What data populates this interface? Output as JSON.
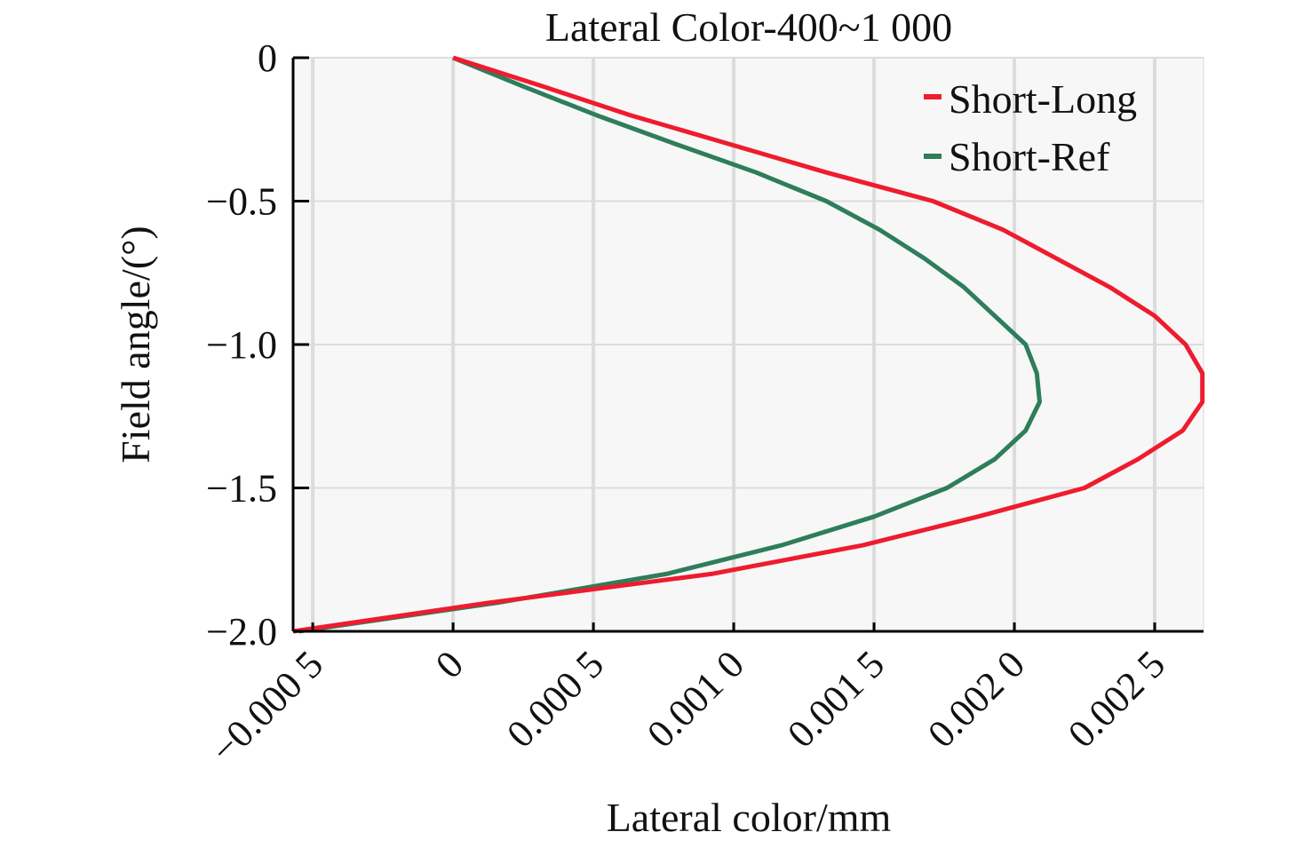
{
  "chart_data": {
    "type": "line",
    "title": "Lateral Color-400~1 000",
    "xlabel": "Lateral color/mm",
    "ylabel": "Field angle/(°)",
    "xlim": [
      -0.00057,
      0.002674
    ],
    "ylim": [
      -2.0,
      0
    ],
    "grid": true,
    "legend_position": "top-right",
    "x_ticks": [
      -0.0005,
      0,
      0.0005,
      0.001,
      0.0015,
      0.002,
      0.0025
    ],
    "x_tick_labels": [
      "−0.000 5",
      "0",
      "0.000 5",
      "0.001 0",
      "0.001 5",
      "0.002 0",
      "0.002 5"
    ],
    "y_ticks": [
      0,
      -0.5,
      -1.0,
      -1.5,
      -2.0
    ],
    "y_tick_labels": [
      "0",
      "−0.5",
      "−1.0",
      "−1.5",
      "−2.0"
    ],
    "y": [
      0,
      -0.1,
      -0.2,
      -0.3,
      -0.4,
      -0.5,
      -0.6,
      -0.7,
      -0.8,
      -0.9,
      -1.0,
      -1.1,
      -1.2,
      -1.3,
      -1.4,
      -1.5,
      -1.6,
      -1.7,
      -1.8,
      -1.9,
      -2.0
    ],
    "series": [
      {
        "name": "Short-Long",
        "color": "#ee1c2e",
        "values": [
          0,
          0.00032,
          0.00063,
          0.00098,
          0.00133,
          0.00171,
          0.00196,
          0.00215,
          0.00234,
          0.0025,
          0.00261,
          0.00267,
          0.00267,
          0.0026,
          0.00244,
          0.00225,
          0.00187,
          0.00146,
          0.00092,
          0.00013,
          -0.00057
        ]
      },
      {
        "name": "Short-Ref",
        "color": "#2e7d5b",
        "values": [
          0,
          0.00025,
          0.00051,
          0.00079,
          0.00108,
          0.00133,
          0.00152,
          0.00168,
          0.00182,
          0.00193,
          0.00204,
          0.00208,
          0.00209,
          0.00204,
          0.00193,
          0.00176,
          0.0015,
          0.00117,
          0.00076,
          0.00016,
          -0.00055
        ]
      }
    ]
  }
}
